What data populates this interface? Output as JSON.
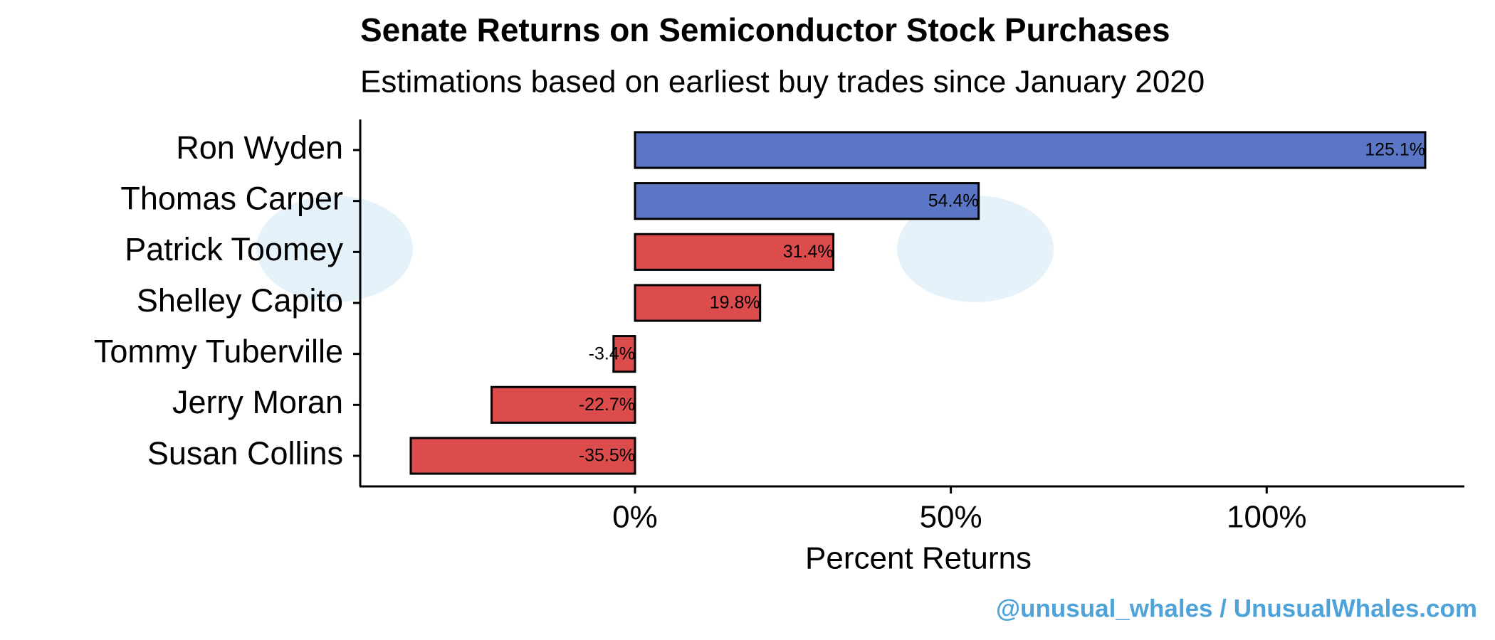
{
  "chart_data": {
    "type": "barh",
    "title": "Senate Returns on Semiconductor Stock Purchases",
    "subtitle": "Estimations based on earliest buy trades since January 2020",
    "x_label": "Percent Returns",
    "caption": "@unusual_whales / UnusualWhales.com",
    "categories": [
      "Ron Wyden",
      "Thomas Carper",
      "Patrick Toomey",
      "Shelley Capito",
      "Tommy Tuberville",
      "Jerry Moran",
      "Susan Collins"
    ],
    "values": [
      125.1,
      54.4,
      31.4,
      19.8,
      -3.4,
      -22.7,
      -35.5
    ],
    "value_labels": [
      "125.1%",
      "54.4%",
      "31.4%",
      "19.8%",
      "-3.4%",
      "-22.7%",
      "-35.5%"
    ],
    "colors": [
      "#5b76c4",
      "#5b76c4",
      "#dc4c4c",
      "#dc4c4c",
      "#dc4c4c",
      "#dc4c4c",
      "#dc4c4c"
    ],
    "xlim": [
      -43.5,
      131.3
    ],
    "xticks": [
      {
        "value": 0,
        "label": "0%"
      },
      {
        "value": 50,
        "label": "50%"
      },
      {
        "value": 100,
        "label": "100%"
      }
    ],
    "grid": false
  }
}
